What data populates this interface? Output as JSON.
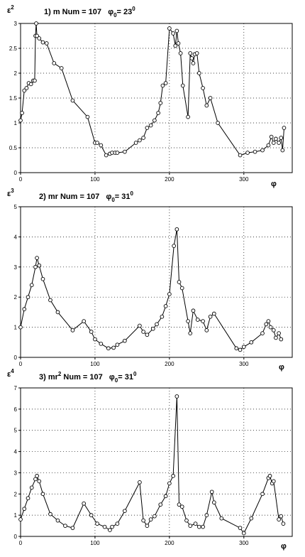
{
  "chart_data": [
    {
      "type": "line",
      "title_parts": {
        "index": "1) m",
        "num": "Num = 107",
        "phi_symbol": "φ",
        "phi_sub": "0",
        "phi_value": "= 23",
        "phi_sup": "0"
      },
      "ylabel": {
        "base": "ε",
        "sup": "2"
      },
      "xlabel": "φ",
      "xlim": [
        0,
        365
      ],
      "ylim": [
        0,
        3
      ],
      "xticks": [
        0,
        100,
        200,
        300
      ],
      "yticks": [
        0,
        0.5,
        1,
        1.5,
        2,
        2.5,
        3
      ],
      "ytick_labels": [
        "0",
        "0.5",
        "1",
        "1.5",
        "2",
        "2.5",
        "3"
      ],
      "grid": true,
      "series": [
        {
          "x": [
            0,
            2,
            5,
            8,
            11,
            14,
            17,
            19,
            20,
            21,
            22,
            25,
            30,
            35,
            45,
            55,
            70,
            90,
            100,
            103,
            108,
            115,
            120,
            123,
            127,
            130,
            140,
            155,
            160,
            165,
            170,
            175,
            180,
            185,
            188,
            191,
            195,
            200,
            205,
            208,
            210,
            212,
            215,
            218,
            225,
            228,
            230,
            232,
            234,
            237,
            240,
            245,
            250,
            255,
            265,
            295,
            305,
            315,
            325,
            333,
            337,
            340,
            343,
            347,
            350,
            352,
            354
          ],
          "y": [
            1.05,
            1.2,
            1.65,
            1.7,
            1.8,
            1.78,
            1.85,
            1.85,
            2.75,
            3.0,
            2.75,
            2.7,
            2.62,
            2.6,
            2.2,
            2.1,
            1.45,
            1.12,
            0.6,
            0.6,
            0.55,
            0.35,
            0.38,
            0.4,
            0.4,
            0.4,
            0.42,
            0.6,
            0.65,
            0.7,
            0.9,
            0.95,
            1.05,
            1.2,
            1.4,
            1.75,
            1.8,
            2.9,
            2.8,
            2.55,
            2.85,
            2.6,
            2.4,
            1.75,
            1.12,
            2.4,
            2.3,
            2.2,
            2.38,
            2.4,
            2.0,
            1.7,
            1.35,
            1.5,
            1.0,
            0.35,
            0.4,
            0.42,
            0.45,
            0.55,
            0.72,
            0.6,
            0.68,
            0.6,
            0.7,
            0.45,
            0.9
          ]
        }
      ]
    },
    {
      "type": "line",
      "title_parts": {
        "index": "2) mr",
        "num": "Num = 107",
        "phi_symbol": "φ",
        "phi_sub": "0",
        "phi_value": "= 31",
        "phi_sup": "0"
      },
      "ylabel": {
        "base": "ε",
        "sup": "3"
      },
      "xlabel": "φ",
      "xlim": [
        0,
        365
      ],
      "ylim": [
        0,
        5
      ],
      "xticks": [
        0,
        100,
        200,
        300
      ],
      "yticks": [
        0,
        1,
        2,
        3,
        4,
        5
      ],
      "ytick_labels": [
        "0",
        "1",
        "2",
        "3",
        "4",
        "5"
      ],
      "grid": true,
      "series": [
        {
          "x": [
            0,
            5,
            10,
            15,
            20,
            22,
            25,
            30,
            40,
            50,
            70,
            85,
            95,
            100,
            108,
            118,
            125,
            130,
            140,
            160,
            165,
            170,
            178,
            183,
            190,
            195,
            200,
            206,
            210,
            213,
            217,
            225,
            228,
            232,
            238,
            245,
            250,
            255,
            260,
            290,
            295,
            300,
            310,
            325,
            330,
            333,
            336,
            340,
            343,
            347,
            350
          ],
          "y": [
            1.0,
            1.6,
            2.0,
            2.4,
            3.0,
            3.3,
            3.05,
            2.6,
            1.9,
            1.5,
            0.9,
            1.2,
            0.85,
            0.6,
            0.45,
            0.3,
            0.32,
            0.42,
            0.55,
            1.05,
            0.85,
            0.75,
            0.95,
            1.1,
            1.35,
            1.7,
            2.1,
            3.7,
            4.25,
            2.5,
            2.3,
            1.2,
            0.8,
            1.55,
            1.25,
            1.2,
            0.9,
            1.35,
            1.45,
            0.3,
            0.25,
            0.35,
            0.5,
            0.8,
            1.1,
            1.2,
            1.0,
            0.9,
            0.65,
            0.8,
            0.6
          ]
        }
      ]
    },
    {
      "type": "line",
      "title_parts": {
        "index": "3) mr",
        "index_sup": "2",
        "num": "Num = 107",
        "phi_symbol": "φ",
        "phi_sub": "0",
        "phi_value": "= 31",
        "phi_sup": "0"
      },
      "ylabel": {
        "base": "ε",
        "sup": "4"
      },
      "xlabel": "φ",
      "xlim": [
        0,
        365
      ],
      "ylim": [
        0,
        7
      ],
      "xticks": [
        0,
        100,
        200,
        300
      ],
      "yticks": [
        0,
        1,
        2,
        3,
        4,
        5,
        6,
        7
      ],
      "ytick_labels": [
        "0",
        "1",
        "2",
        "3",
        "4",
        "5",
        "6",
        "7"
      ],
      "grid": true,
      "series": [
        {
          "x": [
            0,
            5,
            10,
            15,
            20,
            22,
            25,
            30,
            40,
            50,
            60,
            70,
            85,
            95,
            103,
            113,
            120,
            123,
            130,
            140,
            160,
            165,
            170,
            175,
            180,
            188,
            195,
            200,
            205,
            210,
            213,
            217,
            223,
            228,
            235,
            240,
            245,
            250,
            257,
            260,
            270,
            295,
            300,
            310,
            325,
            333,
            335,
            338,
            340,
            347,
            350,
            353
          ],
          "y": [
            0.8,
            1.3,
            1.8,
            2.3,
            2.7,
            2.85,
            2.6,
            2.0,
            1.05,
            0.75,
            0.5,
            0.4,
            1.55,
            1.0,
            0.6,
            0.45,
            0.3,
            0.45,
            0.6,
            1.2,
            2.55,
            0.75,
            0.5,
            0.8,
            0.95,
            1.5,
            1.9,
            2.5,
            2.85,
            6.6,
            1.5,
            1.4,
            0.75,
            0.5,
            0.6,
            0.45,
            0.45,
            1.0,
            2.1,
            1.6,
            0.85,
            0.4,
            0.15,
            0.85,
            2.0,
            2.75,
            2.85,
            2.5,
            2.6,
            0.8,
            0.95,
            0.6
          ]
        }
      ]
    }
  ]
}
